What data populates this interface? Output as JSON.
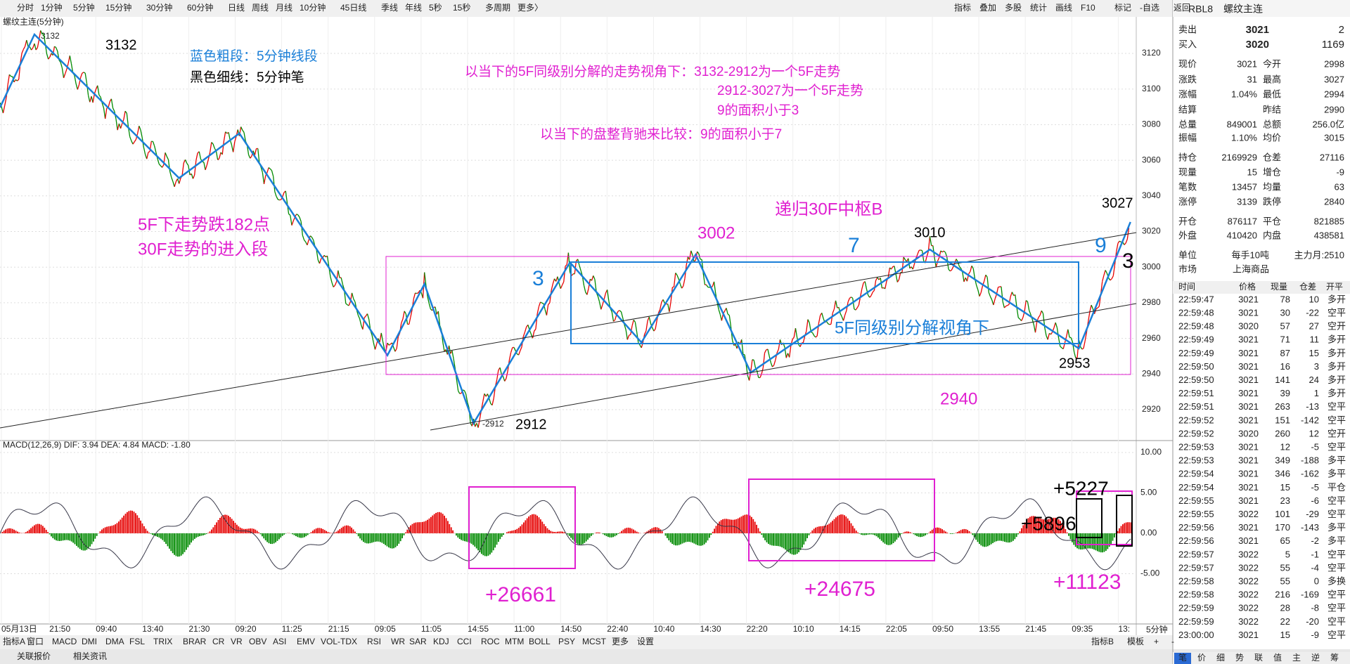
{
  "toolbar": {
    "periods": [
      "分时",
      "1分钟",
      "5分钟",
      "15分钟",
      "30分钟",
      "60分钟",
      "日线",
      "周线",
      "月线",
      "10分钟",
      "45日线",
      "季线",
      "年线",
      "5秒",
      "15秒",
      "多周期",
      "更多〉"
    ],
    "tools": [
      "指标",
      "叠加",
      "多股",
      "统计",
      "画线",
      "F10",
      "标记",
      "-自选",
      "返回"
    ]
  },
  "chart": {
    "title": "螺纹主连(5分钟)",
    "high_label": "3132",
    "low_label": "-2912",
    "price_ticks": [
      "3120",
      "3100",
      "3080",
      "3060",
      "3040",
      "3020",
      "3000",
      "2980",
      "2960",
      "2940",
      "2920"
    ],
    "annotations": [
      "3132",
      "蓝色粗段：5分钟线段",
      "黑色细线：5分钟笔",
      "以当下的5F同级别分解的走势视角下：3132-2912为一个5F走势",
      "2912-3027为一个5F走势",
      "9的面积小于3",
      "以当下的盘整背驰来比较：9的面积小于7",
      "5F下走势跌182点",
      "30F走势的进入段",
      "递归30F中枢B",
      "3002",
      "7",
      "3",
      "9",
      "3",
      "3010",
      "3027",
      "5F同级别分解视角下",
      "2953",
      "2940",
      "2912"
    ]
  },
  "macd": {
    "header": "MACD(12,26,9)  DIF: 3.94  DEA: 4.84  MACD: -1.80",
    "ticks": [
      "10.00",
      "5.00",
      "0.00",
      "-5.00"
    ],
    "annotations": [
      "+26661",
      "+24675",
      "+5896",
      "+5227",
      "+11123"
    ]
  },
  "time_axis": [
    "05月13日",
    "21:50",
    "09:40",
    "13:40",
    "21:30",
    "09:20",
    "11:25",
    "21:15",
    "09:05",
    "11:05",
    "14:55",
    "11:00",
    "14:50",
    "22:40",
    "10:40",
    "14:30",
    "22:20",
    "10:10",
    "14:15",
    "22:05",
    "09:50",
    "13:55",
    "21:45",
    "09:35",
    "13:"
  ],
  "bottom_tabs": {
    "left": [
      "指标A",
      "窗口",
      "MACD",
      "DMI",
      "DMA",
      "FSL",
      "TRIX",
      "BRAR",
      "CR",
      "VR",
      "OBV",
      "ASI",
      "EMV",
      "VOL-TDX",
      "RSI",
      "WR",
      "SAR",
      "KDJ",
      "CCI",
      "ROC",
      "MTM",
      "BOLL",
      "PSY",
      "MCST",
      "更多",
      "设置"
    ],
    "right": [
      "指标B",
      "模板",
      "+",
      "-"
    ],
    "period": "5分钟"
  },
  "status_bar": [
    "关联报价",
    "相关资讯"
  ],
  "quote": {
    "code": "RBL8",
    "name": "螺纹主连",
    "book": [
      [
        "卖出",
        "3021",
        "2"
      ],
      [
        "买入",
        "3020",
        "1169"
      ]
    ],
    "rows": [
      [
        "现价",
        "3021",
        "今开",
        "2998"
      ],
      [
        "涨跌",
        "31",
        "最高",
        "3027"
      ],
      [
        "涨幅",
        "1.04%",
        "最低",
        "2994"
      ],
      [
        "结算",
        "",
        "昨结",
        "2990"
      ],
      [
        "总量",
        "849001",
        "总额",
        "256.0亿"
      ],
      [
        "振幅",
        "1.10%",
        "均价",
        "3015"
      ],
      [
        "持仓",
        "2169929",
        "仓差",
        "27116"
      ],
      [
        "现量",
        "15",
        "增仓",
        "-9"
      ],
      [
        "笔数",
        "13457",
        "均量",
        "63"
      ],
      [
        "涨停",
        "3139",
        "跌停",
        "2840"
      ],
      [
        "开仓",
        "876117",
        "平仓",
        "821885"
      ],
      [
        "外盘",
        "410420",
        "内盘",
        "438581"
      ],
      [
        "单位",
        "每手10吨",
        "主力月:2510",
        ""
      ],
      [
        "市场",
        "上海商品",
        "",
        ""
      ]
    ]
  },
  "trades": {
    "header": [
      "时间",
      "价格",
      "现量",
      "仓差",
      "开平"
    ],
    "rows": [
      [
        "22:59:47",
        "3021",
        "78",
        "10",
        "多开"
      ],
      [
        "22:59:48",
        "3021",
        "30",
        "-22",
        "空平"
      ],
      [
        "22:59:48",
        "3020",
        "57",
        "27",
        "空开"
      ],
      [
        "22:59:49",
        "3021",
        "71",
        "11",
        "多开"
      ],
      [
        "22:59:49",
        "3021",
        "87",
        "15",
        "多开"
      ],
      [
        "22:59:50",
        "3021",
        "16",
        "3",
        "多开"
      ],
      [
        "22:59:50",
        "3021",
        "141",
        "24",
        "多开"
      ],
      [
        "22:59:51",
        "3021",
        "39",
        "1",
        "多开"
      ],
      [
        "22:59:51",
        "3021",
        "263",
        "-13",
        "空平"
      ],
      [
        "22:59:52",
        "3021",
        "151",
        "-142",
        "空平"
      ],
      [
        "22:59:52",
        "3020",
        "260",
        "12",
        "空开"
      ],
      [
        "22:59:53",
        "3021",
        "12",
        "-5",
        "空平"
      ],
      [
        "22:59:53",
        "3021",
        "349",
        "-188",
        "多平"
      ],
      [
        "22:59:54",
        "3021",
        "346",
        "-162",
        "多平"
      ],
      [
        "22:59:54",
        "3021",
        "15",
        "-5",
        "平仓"
      ],
      [
        "22:59:55",
        "3021",
        "23",
        "-6",
        "空平"
      ],
      [
        "22:59:55",
        "3022",
        "101",
        "-29",
        "空平"
      ],
      [
        "22:59:56",
        "3021",
        "170",
        "-143",
        "多平"
      ],
      [
        "22:59:56",
        "3021",
        "65",
        "-2",
        "多平"
      ],
      [
        "22:59:57",
        "3022",
        "5",
        "-1",
        "空平"
      ],
      [
        "22:59:57",
        "3022",
        "55",
        "-4",
        "空平"
      ],
      [
        "22:59:58",
        "3022",
        "55",
        "0",
        "多换"
      ],
      [
        "22:59:58",
        "3022",
        "216",
        "-169",
        "空平"
      ],
      [
        "22:59:59",
        "3022",
        "28",
        "-8",
        "空平"
      ],
      [
        "22:59:59",
        "3022",
        "22",
        "-20",
        "空平"
      ],
      [
        "23:00:00",
        "3021",
        "15",
        "-9",
        "空平"
      ]
    ],
    "tabs": [
      "笔",
      "价",
      "细",
      "势",
      "联",
      "值",
      "主",
      "逆",
      "筹"
    ]
  }
}
